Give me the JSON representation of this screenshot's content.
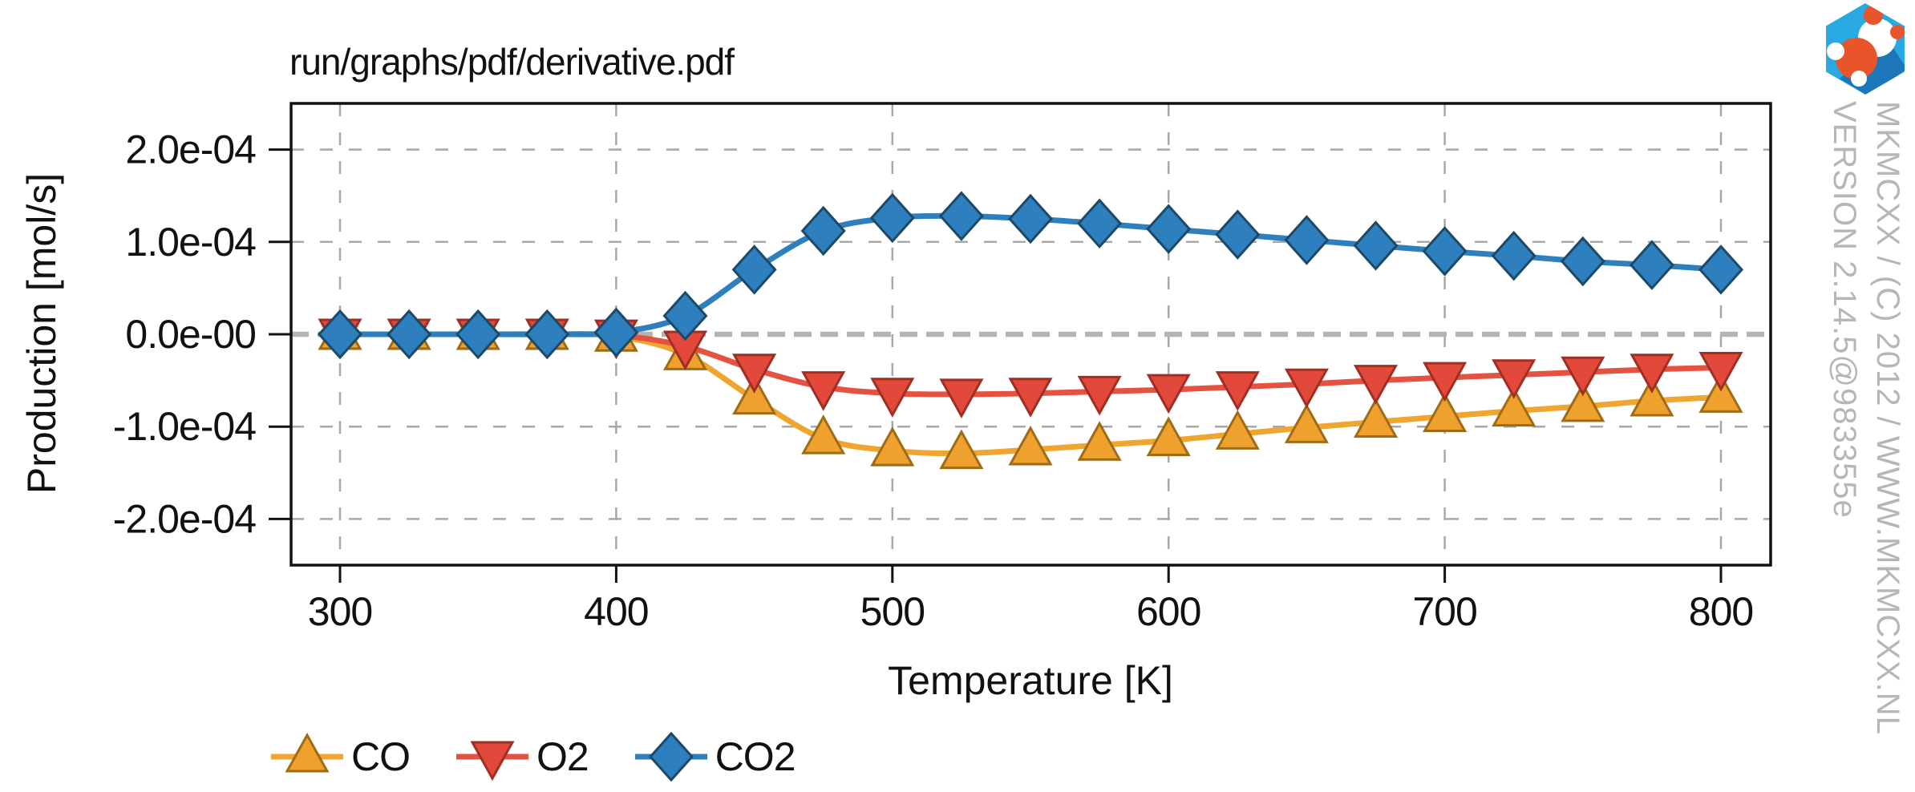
{
  "title": "run/graphs/pdf/derivative.pdf",
  "watermark": {
    "line1": "MKMCXX / (C) 2012 / WWW.MKMCXX.NL",
    "line2": "VERSION 2.14.5@983355e"
  },
  "logo": {
    "hex_color": "#29a9e1",
    "shadow_color": "#1d76ba",
    "molecule_orange": "#e8552b",
    "molecule_white": "#ffffff"
  },
  "chart_data": {
    "type": "line",
    "title": "run/graphs/pdf/derivative.pdf",
    "xlabel": "Temperature [K]",
    "ylabel": "Production [mol/s]",
    "xlim": [
      282,
      818
    ],
    "ylim": [
      -0.00025,
      0.00025
    ],
    "grid": true,
    "grid_style": "dashed",
    "legend_position": "bottom-left-outside",
    "colors": {
      "grid": "#a8a8a8",
      "zero_line": "#b4b4b4",
      "frame": "#111111"
    },
    "x_ticks": [
      300,
      400,
      500,
      600,
      700,
      800
    ],
    "y_ticks": [
      {
        "value": 0.0002,
        "label": "2.0e-04"
      },
      {
        "value": 0.0001,
        "label": "1.0e-04"
      },
      {
        "value": 0,
        "label": "0.0e-00"
      },
      {
        "value": -0.0001,
        "label": "-1.0e-04"
      },
      {
        "value": -0.0002,
        "label": "-2.0e-04"
      }
    ],
    "x": [
      300,
      325,
      350,
      375,
      400,
      425,
      450,
      475,
      500,
      525,
      550,
      575,
      600,
      625,
      650,
      675,
      700,
      725,
      750,
      775,
      800
    ],
    "series": [
      {
        "name": "CO",
        "marker": "triangle-up",
        "fill": "#efa12e",
        "edge": "#9f6c15",
        "line": "#f1a531",
        "values": [
          0,
          0,
          0,
          0,
          -2e-06,
          -2.2e-05,
          -7e-05,
          -0.000113,
          -0.000126,
          -0.000129,
          -0.000125,
          -0.00012,
          -0.000115,
          -0.000108,
          -0.000101,
          -9.5e-05,
          -8.9e-05,
          -8.3e-05,
          -7.8e-05,
          -7.2e-05,
          -6.8e-05
        ]
      },
      {
        "name": "O2",
        "marker": "triangle-down",
        "fill": "#e2493a",
        "edge": "#9f2f24",
        "line": "#e45242",
        "values": [
          0,
          0,
          0,
          0,
          -1e-06,
          -1.3e-05,
          -3.8e-05,
          -5.7e-05,
          -6.4e-05,
          -6.5e-05,
          -6.4e-05,
          -6.2e-05,
          -6e-05,
          -5.7e-05,
          -5.4e-05,
          -5e-05,
          -4.7e-05,
          -4.4e-05,
          -4.1e-05,
          -3.8e-05,
          -3.6e-05
        ]
      },
      {
        "name": "CO2",
        "marker": "diamond",
        "fill": "#2e7fbe",
        "edge": "#1c4966",
        "line": "#2e7fbe",
        "values": [
          0,
          0,
          0,
          0,
          2e-06,
          2e-05,
          7e-05,
          0.000112,
          0.000126,
          0.000128,
          0.000125,
          0.00012,
          0.000114,
          0.000108,
          0.000102,
          9.6e-05,
          9e-05,
          8.5e-05,
          7.9e-05,
          7.5e-05,
          7e-05
        ]
      }
    ]
  }
}
